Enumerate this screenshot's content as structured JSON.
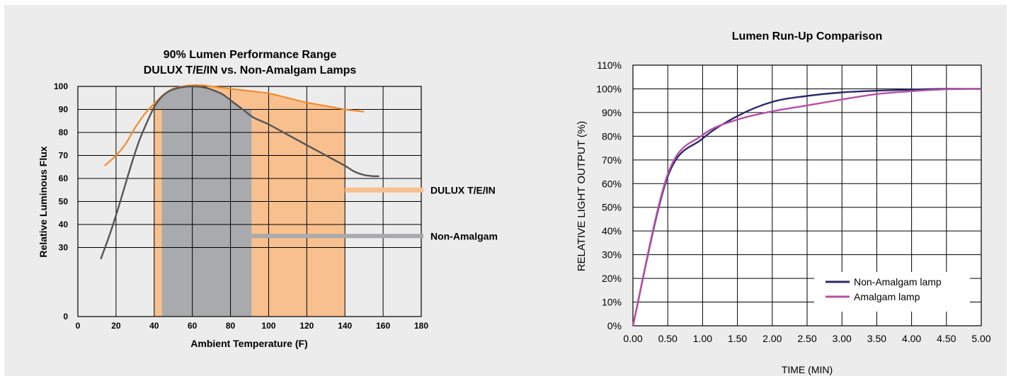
{
  "chart_data": [
    {
      "type": "line",
      "title_lines": [
        "90% Lumen Performance Range",
        "DULUX T/E/IN vs. Non-Amalgam Lamps"
      ],
      "xlabel": "Ambient Temperature (F)",
      "ylabel": "Relative Luminous Flux",
      "xlim": [
        0,
        180
      ],
      "ylim": [
        0,
        100
      ],
      "x_ticks": [
        "0",
        "20",
        "40",
        "60",
        "80",
        "100",
        "120",
        "140",
        "160",
        "180"
      ],
      "y_ticks": [
        "0",
        "30",
        "40",
        "50",
        "60",
        "70",
        "80",
        "90",
        "100"
      ],
      "grid": true,
      "colors": {
        "dulux": "#f08c2e",
        "dulux_band": "#f8c08e",
        "non_amalgam": "#555555",
        "non_amalgam_band": "#a9aaad"
      },
      "bands": [
        {
          "series": "DULUX T/E/IN",
          "x_range": [
            40,
            140
          ]
        },
        {
          "series": "Non-Amalgam",
          "x_range": [
            44,
            91
          ]
        }
      ],
      "legend": [
        {
          "label": "DULUX T/E/IN",
          "color": "#f8c08e"
        },
        {
          "label": "Non-Amalgam",
          "color": "#a9aaad"
        }
      ],
      "series": [
        {
          "name": "DULUX T/E/IN",
          "points": [
            [
              14,
              65.5
            ],
            [
              20,
              70
            ],
            [
              25,
              75
            ],
            [
              30,
              82
            ],
            [
              35,
              88
            ],
            [
              40,
              92.5
            ],
            [
              45,
              96.5
            ],
            [
              50,
              99
            ],
            [
              55,
              100
            ],
            [
              60,
              100.5
            ],
            [
              65,
              100.5
            ],
            [
              70,
              100
            ],
            [
              80,
              99
            ],
            [
              90,
              98
            ],
            [
              100,
              97
            ],
            [
              110,
              95
            ],
            [
              120,
              93
            ],
            [
              130,
              91.5
            ],
            [
              140,
              90
            ],
            [
              145,
              89.5
            ],
            [
              150,
              89
            ]
          ]
        },
        {
          "name": "Non-Amalgam",
          "points": [
            [
              12,
              25
            ],
            [
              16,
              34
            ],
            [
              20,
              44
            ],
            [
              24,
              55
            ],
            [
              28,
              66
            ],
            [
              32,
              76
            ],
            [
              36,
              84
            ],
            [
              40,
              91
            ],
            [
              44,
              95.5
            ],
            [
              48,
              98
            ],
            [
              52,
              99.2
            ],
            [
              56,
              99.8
            ],
            [
              60,
              100
            ],
            [
              64,
              99.8
            ],
            [
              68,
              99.2
            ],
            [
              72,
              98
            ],
            [
              76,
              96.5
            ],
            [
              80,
              94
            ],
            [
              84,
              91.5
            ],
            [
              88,
              89
            ],
            [
              92,
              86.5
            ],
            [
              100,
              83.5
            ],
            [
              110,
              79
            ],
            [
              120,
              74.5
            ],
            [
              130,
              70
            ],
            [
              140,
              65.5
            ],
            [
              145,
              63
            ],
            [
              150,
              61.5
            ],
            [
              155,
              61
            ],
            [
              158,
              61
            ]
          ]
        }
      ]
    },
    {
      "type": "line",
      "title": "Lumen Run-Up Comparison",
      "xlabel": "TIME (MIN)",
      "ylabel": "RELATIVE LIGHT OUTPUT (%)",
      "xlim": [
        0,
        5
      ],
      "ylim": [
        0,
        110
      ],
      "x_ticks": [
        "0.00",
        "0.50",
        "1.00",
        "1.50",
        "2.00",
        "2.50",
        "3.00",
        "3.50",
        "4.00",
        "4.50",
        "5.00"
      ],
      "y_ticks": [
        "0%",
        "10%",
        "20%",
        "30%",
        "40%",
        "50%",
        "60%",
        "70%",
        "80%",
        "90%",
        "100%",
        "110%"
      ],
      "grid": true,
      "legend_position": "bottom-right",
      "series": [
        {
          "name": "Non-Amalgam lamp",
          "color": "#2a2a6c",
          "x": [
            0,
            0.5,
            1.0,
            1.5,
            2.0,
            2.5,
            3.0,
            3.5,
            4.0,
            4.5,
            5.0
          ],
          "y": [
            0,
            63,
            79,
            88.5,
            94.5,
            97,
            98.5,
            99.2,
            99.7,
            100,
            100
          ]
        },
        {
          "name": "Amalgam lamp",
          "color": "#b84fa6",
          "x": [
            0,
            0.5,
            1.0,
            1.5,
            2.0,
            2.5,
            3.0,
            3.5,
            4.0,
            4.5,
            5.0
          ],
          "y": [
            0,
            64,
            80.5,
            87,
            90.5,
            93,
            95.5,
            97.8,
            99,
            99.8,
            100
          ]
        }
      ]
    }
  ]
}
